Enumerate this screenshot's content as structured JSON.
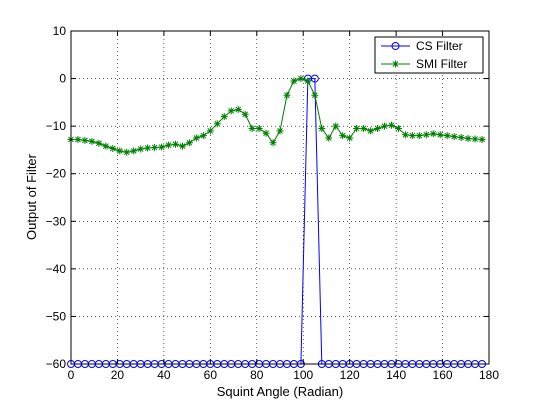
{
  "chart_data": {
    "type": "line",
    "xlabel": "Squint Angle (Radian)",
    "ylabel": "Output of Filter",
    "xlim": [
      0,
      180
    ],
    "ylim": [
      -60,
      10
    ],
    "xticks": [
      0,
      20,
      40,
      60,
      80,
      100,
      120,
      140,
      160,
      180
    ],
    "yticks": [
      10,
      0,
      -10,
      -20,
      -30,
      -40,
      -50,
      -60
    ],
    "grid": "dotted",
    "legend_position": "top-right",
    "series": [
      {
        "name": "CS Filter",
        "color": "#0000ff",
        "marker": "circle",
        "x": [
          0,
          3,
          6,
          9,
          12,
          15,
          18,
          21,
          24,
          27,
          30,
          33,
          36,
          39,
          42,
          45,
          48,
          51,
          54,
          57,
          60,
          63,
          66,
          69,
          72,
          75,
          78,
          81,
          84,
          87,
          90,
          93,
          96,
          99,
          102,
          105,
          108,
          111,
          114,
          117,
          120,
          123,
          126,
          129,
          132,
          135,
          138,
          141,
          144,
          147,
          150,
          153,
          156,
          159,
          162,
          165,
          168,
          171,
          174,
          177
        ],
        "y": [
          -60,
          -60,
          -60,
          -60,
          -60,
          -60,
          -60,
          -60,
          -60,
          -60,
          -60,
          -60,
          -60,
          -60,
          -60,
          -60,
          -60,
          -60,
          -60,
          -60,
          -60,
          -60,
          -60,
          -60,
          -60,
          -60,
          -60,
          -60,
          -60,
          -60,
          -60,
          -60,
          -60,
          -60,
          0,
          0,
          -60,
          -60,
          -60,
          -60,
          -60,
          -60,
          -60,
          -60,
          -60,
          -60,
          -60,
          -60,
          -60,
          -60,
          -60,
          -60,
          -60,
          -60,
          -60,
          -60,
          -60,
          -60,
          -60,
          -60
        ]
      },
      {
        "name": "SMI Filter",
        "color": "#008000",
        "marker": "star",
        "x": [
          0,
          3,
          6,
          9,
          12,
          15,
          18,
          21,
          24,
          27,
          30,
          33,
          36,
          39,
          42,
          45,
          48,
          51,
          54,
          57,
          60,
          63,
          66,
          69,
          72,
          75,
          78,
          81,
          84,
          87,
          90,
          93,
          96,
          99,
          102,
          105,
          108,
          111,
          114,
          117,
          120,
          123,
          126,
          129,
          132,
          135,
          138,
          141,
          144,
          147,
          150,
          153,
          156,
          159,
          162,
          165,
          168,
          171,
          174,
          177
        ],
        "y": [
          -12.8,
          -12.8,
          -13.0,
          -13.2,
          -13.6,
          -14.2,
          -14.7,
          -15.2,
          -15.5,
          -15.2,
          -14.8,
          -14.6,
          -14.5,
          -14.4,
          -14.0,
          -13.8,
          -14.2,
          -13.5,
          -12.5,
          -12.0,
          -11.0,
          -9.5,
          -8.0,
          -6.8,
          -6.5,
          -7.5,
          -10.5,
          -10.5,
          -11.5,
          -13.5,
          -11.0,
          -3.5,
          -0.5,
          0.0,
          -0.5,
          -3.5,
          -10.5,
          -12.5,
          -10.0,
          -12.0,
          -12.5,
          -10.5,
          -10.5,
          -11.0,
          -10.5,
          -10.0,
          -9.8,
          -10.5,
          -11.8,
          -12.0,
          -12.0,
          -11.8,
          -11.6,
          -11.8,
          -12.0,
          -12.2,
          -12.4,
          -12.6,
          -12.7,
          -12.8
        ]
      }
    ]
  }
}
